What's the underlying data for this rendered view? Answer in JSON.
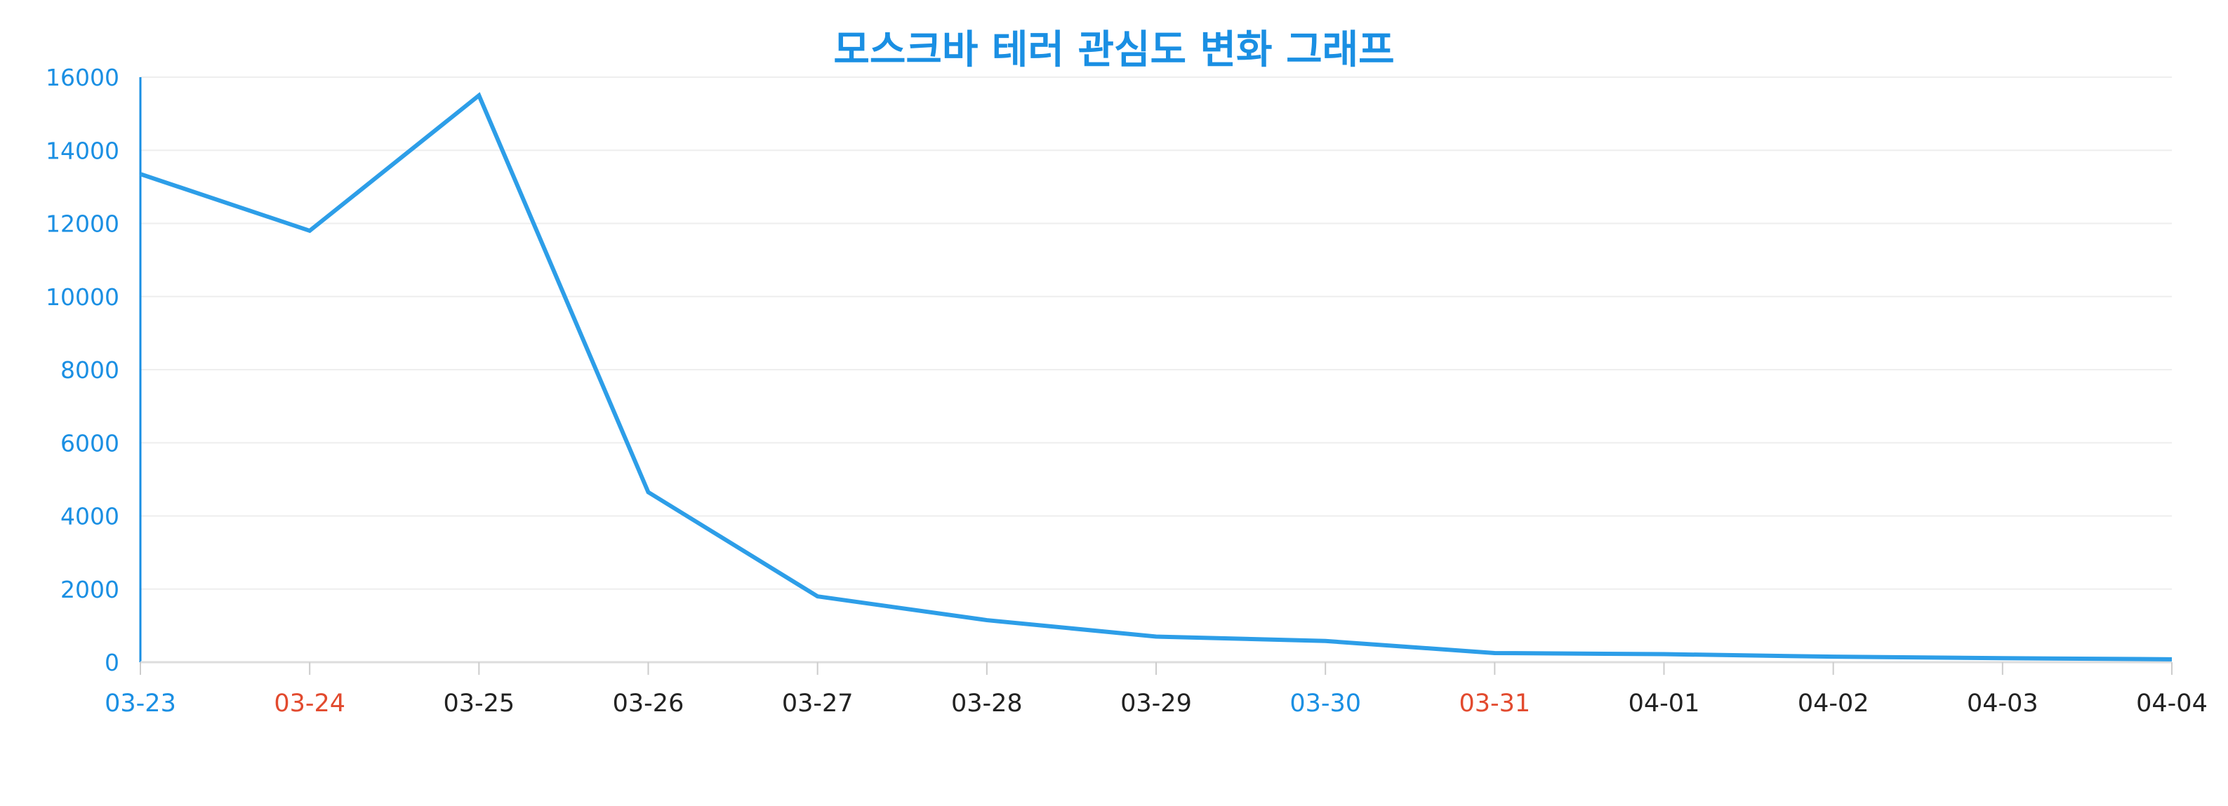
{
  "chart_data": {
    "type": "line",
    "title": "모스크바 테러 관심도 변화 그래프",
    "xlabel": "",
    "ylabel": "",
    "ylim": [
      0,
      16000
    ],
    "yticks": [
      0,
      2000,
      4000,
      6000,
      8000,
      10000,
      12000,
      14000,
      16000
    ],
    "grid": true,
    "categories": [
      "03-23",
      "03-24",
      "03-25",
      "03-26",
      "03-27",
      "03-28",
      "03-29",
      "03-30",
      "03-31",
      "04-01",
      "04-02",
      "04-03",
      "04-04"
    ],
    "category_colors": [
      "#1a8fe3",
      "#e24a2e",
      "#222222",
      "#222222",
      "#222222",
      "#222222",
      "#222222",
      "#1a8fe3",
      "#e24a2e",
      "#222222",
      "#222222",
      "#222222",
      "#222222"
    ],
    "series": [
      {
        "values": [
          13350,
          11800,
          15500,
          4650,
          1800,
          1150,
          700,
          580,
          250,
          220,
          150,
          110,
          80
        ],
        "color": "#2d9ee8"
      }
    ]
  },
  "colors": {
    "title": "#1a8fe3",
    "axis": "#1a8fe3",
    "grid": "#eeeeee",
    "line": "#2d9ee8"
  }
}
